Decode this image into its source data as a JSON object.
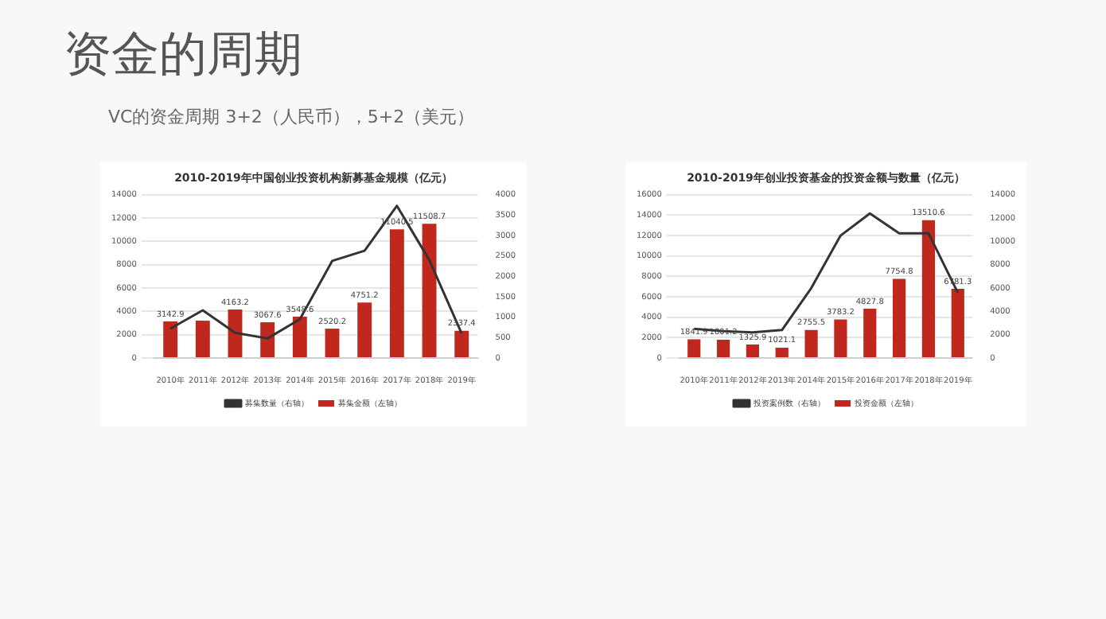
{
  "chart_data": [
    {
      "type": "other",
      "title": "资金的周期",
      "subtitle": "VC的资金周期  3+2（人民币），5+2（美元）"
    },
    {
      "type": "bar",
      "title": "2010-2019年中国创业投资机构新募基金规模（亿元）",
      "categories": [
        "2010年",
        "2011年",
        "2012年",
        "2013年",
        "2014年",
        "2015年",
        "2016年",
        "2017年",
        "2018年",
        "2019年"
      ],
      "series": [
        {
          "name": "募集金额（左轴）",
          "type": "bar",
          "color": "#c0281e",
          "values": [
            3142.9,
            3200,
            4163.2,
            3067.6,
            3548.6,
            2520.2,
            4751.2,
            11040.5,
            11508.7,
            2337.4
          ],
          "value_labels": [
            "3142.9",
            null,
            "4163.2",
            "3067.6",
            "3548.6",
            "2520.2",
            "4751.2",
            "11040.5",
            "11508.7",
            "2337.4"
          ]
        },
        {
          "name": "募集数量（右轴）",
          "type": "line",
          "axis": "y2",
          "color": "#333333",
          "values": [
            720,
            1170,
            620,
            480,
            950,
            2380,
            2630,
            3730,
            2400,
            600
          ]
        }
      ],
      "ylim": [
        0,
        14000
      ],
      "yticks": [
        0,
        2000,
        4000,
        6000,
        8000,
        10000,
        12000,
        14000
      ],
      "y2lim": [
        0,
        4000
      ],
      "y2ticks": [
        0,
        500,
        1000,
        1500,
        2000,
        2500,
        3000,
        3500,
        4000
      ],
      "grid": "y",
      "legend": "bottom",
      "marker": "none"
    },
    {
      "type": "bar",
      "title": "2010-2019年创业投资基金的投资金额与数量（亿元）",
      "categories": [
        "2010年",
        "2011年",
        "2012年",
        "2013年",
        "2014年",
        "2015年",
        "2016年",
        "2017年",
        "2018年",
        "2019年"
      ],
      "series": [
        {
          "name": "投资金额（左轴）",
          "type": "bar",
          "color": "#c0281e",
          "values": [
            1841.9,
            1801.2,
            1325.9,
            1021.1,
            2755.5,
            3783.2,
            4827.8,
            7754.8,
            13510.6,
            6781.3
          ],
          "value_labels": [
            "1841.9",
            "1801.2",
            "1325.9",
            "1021.1",
            "2755.5",
            "3783.2",
            "4827.8",
            "7754.8",
            "13510.6",
            "6781.3"
          ]
        },
        {
          "name": "投资案例数（右轴）",
          "type": "line",
          "axis": "y2",
          "color": "#333333",
          "values": [
            2500,
            2300,
            2200,
            2400,
            6000,
            10500,
            12400,
            10700,
            10700,
            5600
          ]
        }
      ],
      "ylim": [
        0,
        16000
      ],
      "yticks": [
        0,
        2000,
        4000,
        6000,
        8000,
        10000,
        12000,
        14000,
        16000
      ],
      "y2lim": [
        0,
        14000
      ],
      "y2ticks": [
        0,
        2000,
        4000,
        6000,
        8000,
        10000,
        12000,
        14000
      ],
      "grid": "y",
      "legend": "bottom",
      "marker": "none"
    }
  ]
}
